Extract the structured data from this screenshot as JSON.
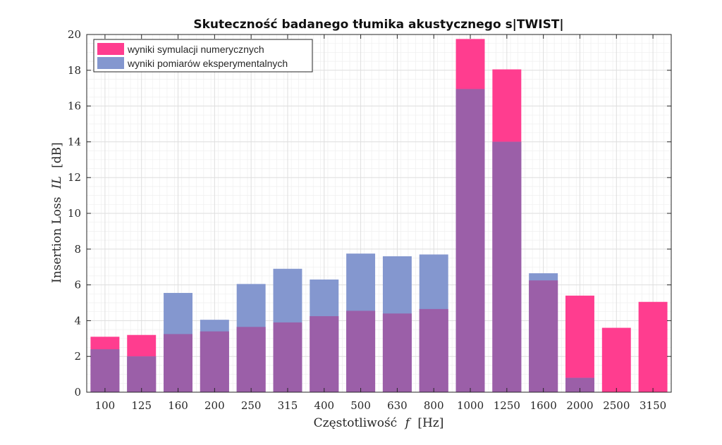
{
  "chart_data": {
    "type": "bar",
    "title": "Skuteczność badanego tłumika akustycznego s|TWIST|",
    "xlabel_prefix": "Częstotliwość",
    "xlabel_var": "f",
    "xlabel_unit": "[Hz]",
    "ylabel_prefix": "Insertion Loss",
    "ylabel_var": "IL",
    "ylabel_unit": "[dB]",
    "ylim": [
      0,
      20
    ],
    "yticks": [
      "0",
      "2",
      "4",
      "6",
      "8",
      "10",
      "12",
      "14",
      "16",
      "18",
      "20"
    ],
    "grid": true,
    "legend_position": "top-left",
    "categories": [
      "100",
      "125",
      "160",
      "200",
      "250",
      "315",
      "400",
      "500",
      "630",
      "800",
      "1000",
      "1250",
      "1600",
      "2000",
      "2500",
      "3150"
    ],
    "series": [
      {
        "name": "wyniki symulacji numerycznych",
        "color": "#ff3d8f",
        "values": [
          3.1,
          3.2,
          3.25,
          3.4,
          3.65,
          3.9,
          4.25,
          4.55,
          4.4,
          4.65,
          19.75,
          18.05,
          6.25,
          5.4,
          3.6,
          5.05
        ]
      },
      {
        "name": "wyniki pomiarów eksperymentalnych",
        "color": "#8497cf",
        "values": [
          2.4,
          2.0,
          5.55,
          4.05,
          6.05,
          6.9,
          6.3,
          7.75,
          7.6,
          7.7,
          16.95,
          14.0,
          6.65,
          0.8,
          0,
          0
        ]
      }
    ]
  }
}
